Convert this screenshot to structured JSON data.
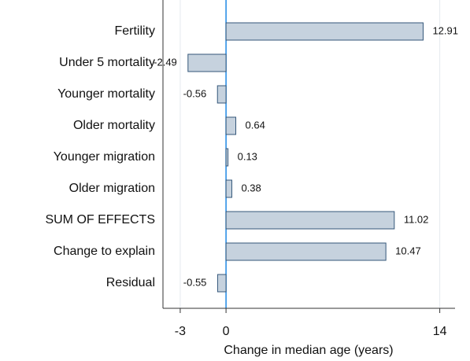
{
  "chart_data": {
    "type": "hbar",
    "categories": [
      "Fertility",
      "Under 5 mortality",
      "Younger mortality",
      "Older mortality",
      "Younger migration",
      "Older migration",
      "SUM OF EFFECTS",
      "Change to explain",
      "Residual"
    ],
    "values": [
      12.91,
      -2.49,
      -0.56,
      0.64,
      0.13,
      0.38,
      11.02,
      10.47,
      -0.55
    ],
    "color": "#c6d2de",
    "edge_color": "#34577a",
    "zero_line_color": "#1e88e5",
    "xlabel": "Change in median age (years)",
    "xlim": [
      -4.13,
      15
    ],
    "xticks": [
      -3,
      0,
      14
    ],
    "grid": true
  }
}
